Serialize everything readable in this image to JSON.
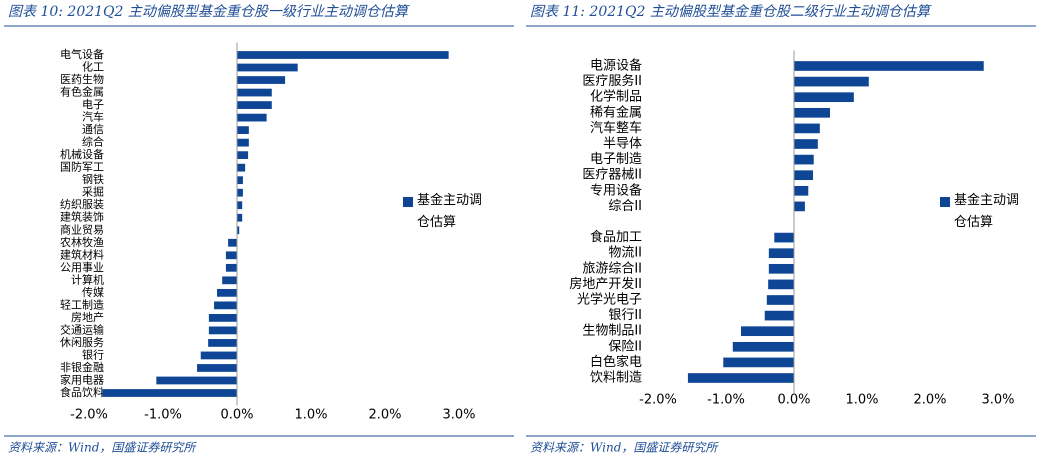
{
  "chart_data": [
    {
      "type": "bar",
      "title": "图表 10:  2021Q2 主动偏股型基金重仓股一级行业主动调仓估算",
      "source": "资料来源：Wind，国盛证券研究所",
      "categories": [
        "电气设备",
        "化工",
        "医药生物",
        "有色金属",
        "电子",
        "汽车",
        "通信",
        "综合",
        "机械设备",
        "国防军工",
        "钢铁",
        "采掘",
        "纺织服装",
        "建筑装饰",
        "商业贸易",
        "农林牧渔",
        "建筑材料",
        "公用事业",
        "计算机",
        "传媒",
        "轻工制造",
        "房地产",
        "交通运输",
        "休闲服务",
        "银行",
        "非银金融",
        "家用电器",
        "食品饮料"
      ],
      "series": [
        {
          "name": "基金主动调仓估算",
          "color": "#0e4595",
          "values": [
            2.86,
            0.82,
            0.65,
            0.47,
            0.47,
            0.4,
            0.16,
            0.16,
            0.15,
            0.11,
            0.08,
            0.08,
            0.07,
            0.07,
            0.03,
            -0.12,
            -0.15,
            -0.15,
            -0.2,
            -0.27,
            -0.31,
            -0.38,
            -0.38,
            -0.39,
            -0.49,
            -0.54,
            -1.09,
            -1.82
          ]
        }
      ],
      "xlim": [
        -2,
        3
      ],
      "xticks": [
        {
          "value": -2,
          "label": "-2.0%"
        },
        {
          "value": -1,
          "label": "-1.0%"
        },
        {
          "value": 0,
          "label": "0.0%"
        },
        {
          "value": 1,
          "label": "1.0%"
        },
        {
          "value": 2,
          "label": "2.0%"
        },
        {
          "value": 3,
          "label": "3.0%"
        }
      ],
      "orientation": "horizontal",
      "legend": "right"
    },
    {
      "type": "bar",
      "title": "图表 11:  2021Q2 主动偏股型基金重仓股二级行业主动调仓估算",
      "source": "资料来源：Wind，国盛证券研究所",
      "categories": [
        "电源设备",
        "医疗服务II",
        "化学制品",
        "稀有金属",
        "汽车整车",
        "半导体",
        "电子制造",
        "医疗器械II",
        "专用设备",
        "综合II",
        null,
        "食品加工",
        "物流II",
        "旅游综合II",
        "房地产开发II",
        "光学光电子",
        "银行II",
        "生物制品II",
        "保险II",
        "白色家电",
        "饮料制造"
      ],
      "series": [
        {
          "name": "基金主动调仓估算",
          "color": "#0e4595",
          "values": [
            2.79,
            1.1,
            0.88,
            0.53,
            0.38,
            0.35,
            0.29,
            0.28,
            0.21,
            0.16,
            null,
            -0.29,
            -0.37,
            -0.37,
            -0.38,
            -0.4,
            -0.43,
            -0.78,
            -0.9,
            -1.04,
            -1.56
          ]
        }
      ],
      "xlim": [
        -2,
        3
      ],
      "xticks": [
        {
          "value": -2,
          "label": "-2.0%"
        },
        {
          "value": -1,
          "label": "-1.0%"
        },
        {
          "value": 0,
          "label": "0.0%"
        },
        {
          "value": 1,
          "label": "1.0%"
        },
        {
          "value": 2,
          "label": "2.0%"
        },
        {
          "value": 3,
          "label": "3.0%"
        }
      ],
      "orientation": "horizontal",
      "legend": "right"
    }
  ]
}
